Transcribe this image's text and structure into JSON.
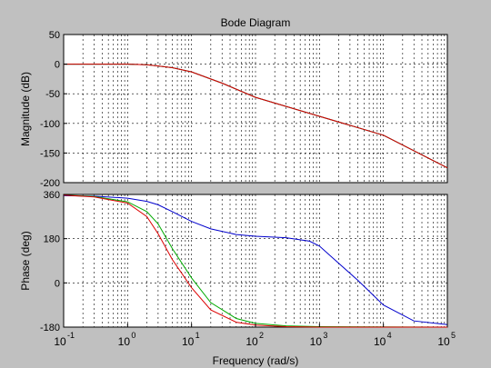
{
  "chart_data": {
    "type": "line",
    "title": "Bode Diagram",
    "xlabel": "Frequency  (rad/s)",
    "x_scale": "log",
    "x_range": [
      0.1,
      100000
    ],
    "x_ticks": [
      {
        "base": "10",
        "exp": "-1"
      },
      {
        "base": "10",
        "exp": "0"
      },
      {
        "base": "10",
        "exp": "1"
      },
      {
        "base": "10",
        "exp": "2"
      },
      {
        "base": "10",
        "exp": "3"
      },
      {
        "base": "10",
        "exp": "4"
      },
      {
        "base": "10",
        "exp": "5"
      }
    ],
    "grid": true,
    "panels": [
      {
        "ylabel": "Magnitude (dB)",
        "ylim": [
          -200,
          50
        ],
        "yticks": [
          "50",
          "0",
          "-50",
          "-100",
          "-150",
          "-200"
        ],
        "series": [
          {
            "color": "#0000cc",
            "x": [
              0.1,
              0.3,
              1,
              2,
              3,
              5,
              10,
              30,
              100,
              1000,
              10000,
              100000
            ],
            "y": [
              0,
              0,
              0,
              -1,
              -3,
              -6,
              -13,
              -32,
              -56,
              -88,
              -120,
              -175
            ]
          },
          {
            "color": "#00aa00",
            "x": [
              0.1,
              0.3,
              1,
              2,
              3,
              5,
              10,
              30,
              100,
              1000,
              10000,
              100000
            ],
            "y": [
              0,
              0,
              0,
              -1,
              -3,
              -6,
              -13,
              -32,
              -56,
              -88,
              -120,
              -175
            ]
          },
          {
            "color": "#dd0000",
            "x": [
              0.1,
              0.3,
              1,
              2,
              3,
              5,
              10,
              30,
              100,
              1000,
              10000,
              100000
            ],
            "y": [
              0,
              0,
              0,
              -1,
              -3,
              -6,
              -13,
              -32,
              -56,
              -88,
              -120,
              -175
            ]
          }
        ]
      },
      {
        "ylabel": "Phase (deg)",
        "ylim": [
          -180,
          360
        ],
        "yticks": [
          "360",
          "180",
          "0",
          "-180"
        ],
        "series": [
          {
            "color": "#0000cc",
            "x": [
              0.1,
              0.3,
              1,
              2,
              3,
              5,
              10,
              20,
              50,
              100,
              300,
              700,
              1000,
              2000,
              4000,
              10000,
              30000,
              100000
            ],
            "y": [
              355,
              353,
              345,
              332,
              318,
              290,
              250,
              220,
              197,
              190,
              184,
              170,
              150,
              80,
              10,
              -90,
              -155,
              -170
            ]
          },
          {
            "color": "#00aa00",
            "x": [
              0.1,
              0.3,
              1,
              2,
              3,
              5,
              10,
              20,
              50,
              100,
              300,
              1000,
              100000
            ],
            "y": [
              357,
              352,
              330,
              290,
              240,
              140,
              20,
              -80,
              -145,
              -165,
              -175,
              -178,
              -180
            ]
          },
          {
            "color": "#dd0000",
            "x": [
              0.1,
              0.3,
              1,
              2,
              3,
              5,
              10,
              20,
              50,
              100,
              300,
              1000,
              100000
            ],
            "y": [
              357,
              350,
              325,
              270,
              200,
              95,
              -20,
              -110,
              -160,
              -172,
              -178,
              -180,
              -180
            ]
          }
        ]
      }
    ]
  }
}
